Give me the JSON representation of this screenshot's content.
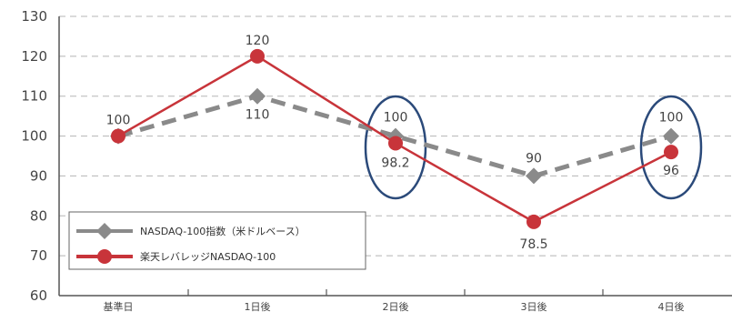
{
  "chart_data": {
    "type": "line",
    "categories": [
      "基準日",
      "1日後",
      "2日後",
      "3日後",
      "4日後"
    ],
    "ylim": [
      60,
      130
    ],
    "yticks": [
      60,
      70,
      80,
      90,
      100,
      110,
      120,
      130
    ],
    "grid": true,
    "legend_position": "bottom-left",
    "series": [
      {
        "name": "NASDAQ-100指数（米ドルベース）",
        "values": [
          100,
          110,
          100,
          90,
          100
        ],
        "labels": [
          "100",
          "110",
          "100",
          "90",
          "100"
        ],
        "color": "#8a8a8a",
        "marker": "diamond",
        "line_style": "dashed"
      },
      {
        "name": "楽天レバレッジNASDAQ-100",
        "values": [
          100,
          120,
          98.2,
          78.5,
          96
        ],
        "labels": [
          "",
          "120",
          "98.2",
          "78.5",
          "96"
        ],
        "color": "#c8343a",
        "marker": "circle",
        "line_style": "solid"
      }
    ],
    "highlight_color": "#2b4a7a",
    "highlighted_categories": [
      "2日後",
      "4日後"
    ]
  }
}
